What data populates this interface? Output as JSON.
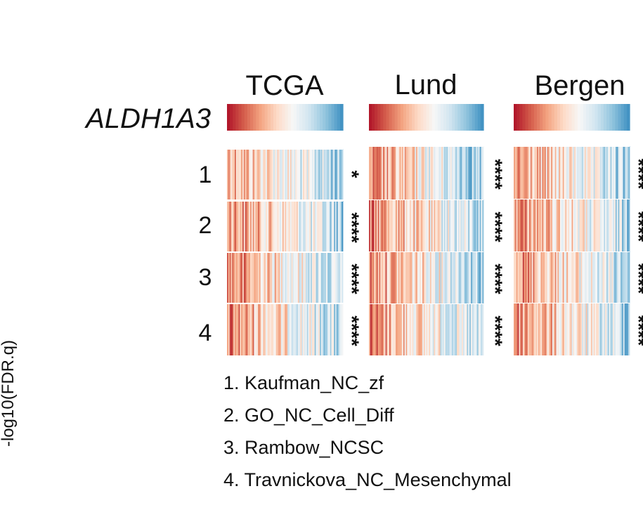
{
  "chart_data": {
    "type": "heatmap",
    "gene": "ALDH1A3",
    "cohorts": [
      "TCGA",
      "Lund",
      "Bergen"
    ],
    "gene_sets": [
      {
        "index": "1",
        "label": "1. Kaufman_NC_zf"
      },
      {
        "index": "2",
        "label": "2. GO_NC_Cell_Diff"
      },
      {
        "index": "3",
        "label": "3. Rambow_NCSC"
      },
      {
        "index": "4",
        "label": "4. Travnickova_NC_Mesenchymal"
      }
    ],
    "significance": [
      [
        "*",
        "****",
        "****"
      ],
      [
        "****",
        "****",
        "****"
      ],
      [
        "****",
        "****",
        "****"
      ],
      [
        "****",
        "****",
        "****"
      ]
    ],
    "ylabel": "-log10(FDR.q)",
    "color_scale": [
      "#b2182b",
      "#d6604d",
      "#f4a582",
      "#fddbc7",
      "#f7f7f7",
      "#d1e5f0",
      "#92c5de",
      "#4393c3"
    ]
  }
}
